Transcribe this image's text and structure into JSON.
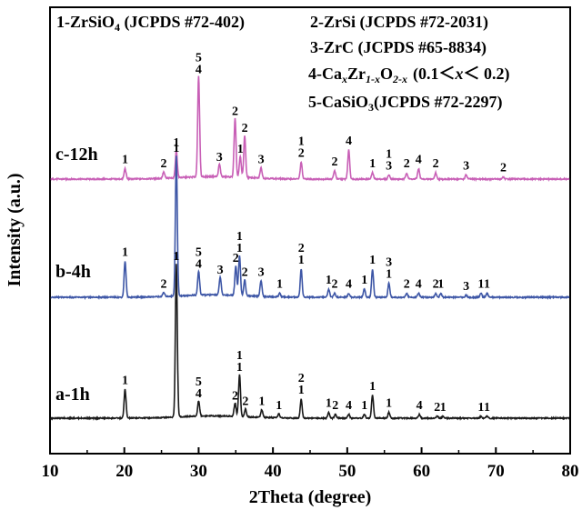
{
  "chart_data": {
    "type": "line",
    "xlabel": "2Theta (degree)",
    "ylabel": "Intensity (a.u.)",
    "xlim": [
      10,
      80
    ],
    "x_ticks": [
      "10",
      "20",
      "30",
      "40",
      "50",
      "60",
      "70",
      "80"
    ],
    "legend_placement": "top",
    "legend": {
      "row1": [
        "1-ZrSiO",
        "4",
        " (JCPDS #72-402)",
        "2-ZrSi (JCPDS #72-2031)"
      ],
      "row2": "3-ZrC (JCPDS #65-8834)",
      "row3": [
        "4-Ca",
        "x",
        "Zr",
        "1-x",
        "O",
        "2-x",
        "(0.1＜",
        "x",
        "＜ 0.2)"
      ],
      "row4": [
        "5-CaSiO",
        "3",
        "(JCPDS #72-2297)"
      ]
    },
    "series": [
      {
        "name": "c-12h",
        "color": "#c85fb6",
        "baseline": 0.0,
        "peaks": [
          {
            "x": 20.1,
            "h": 0.05,
            "labels": [
              "1"
            ]
          },
          {
            "x": 25.3,
            "h": 0.03,
            "labels": [
              "2"
            ]
          },
          {
            "x": 27.0,
            "h": 0.13,
            "labels": [
              "1"
            ]
          },
          {
            "x": 30.0,
            "h": 0.48,
            "labels": [
              "5",
              "4"
            ]
          },
          {
            "x": 32.8,
            "h": 0.06,
            "labels": [
              "3"
            ]
          },
          {
            "x": 34.9,
            "h": 0.28,
            "labels": [
              "2"
            ]
          },
          {
            "x": 35.6,
            "h": 0.1,
            "labels": [
              "1"
            ]
          },
          {
            "x": 36.2,
            "h": 0.2,
            "labels": [
              "2"
            ]
          },
          {
            "x": 38.4,
            "h": 0.05,
            "labels": [
              "3"
            ]
          },
          {
            "x": 43.8,
            "h": 0.08,
            "labels": [
              "1",
              "2"
            ]
          },
          {
            "x": 48.3,
            "h": 0.04,
            "labels": [
              "2"
            ]
          },
          {
            "x": 50.2,
            "h": 0.14,
            "labels": [
              "4"
            ]
          },
          {
            "x": 53.4,
            "h": 0.03,
            "labels": [
              "1"
            ]
          },
          {
            "x": 55.6,
            "h": 0.02,
            "labels": [
              "1",
              "3"
            ]
          },
          {
            "x": 58.0,
            "h": 0.03,
            "labels": [
              "2"
            ]
          },
          {
            "x": 59.6,
            "h": 0.05,
            "labels": [
              "4"
            ]
          },
          {
            "x": 61.9,
            "h": 0.03,
            "labels": [
              "2"
            ]
          },
          {
            "x": 66.0,
            "h": 0.02,
            "labels": [
              "3"
            ]
          },
          {
            "x": 71.0,
            "h": 0.01,
            "labels": [
              "2"
            ]
          }
        ]
      },
      {
        "name": "b-4h",
        "color": "#3d56a6",
        "baseline": 0.0,
        "peaks": [
          {
            "x": 20.1,
            "h": 0.18,
            "labels": [
              "1"
            ]
          },
          {
            "x": 25.3,
            "h": 0.02,
            "labels": [
              "2"
            ]
          },
          {
            "x": 27.0,
            "h": 0.7,
            "labels": [
              "1"
            ]
          },
          {
            "x": 30.0,
            "h": 0.12,
            "labels": [
              "5",
              "4"
            ]
          },
          {
            "x": 32.9,
            "h": 0.09,
            "labels": [
              "3"
            ]
          },
          {
            "x": 35.0,
            "h": 0.15,
            "labels": [
              "2"
            ]
          },
          {
            "x": 35.5,
            "h": 0.2,
            "labels": [
              "1",
              "1"
            ]
          },
          {
            "x": 36.2,
            "h": 0.08,
            "labels": [
              "2"
            ]
          },
          {
            "x": 38.4,
            "h": 0.08,
            "labels": [
              "3"
            ]
          },
          {
            "x": 40.9,
            "h": 0.02,
            "labels": [
              "1"
            ]
          },
          {
            "x": 43.8,
            "h": 0.14,
            "labels": [
              "2",
              "1"
            ]
          },
          {
            "x": 47.5,
            "h": 0.04,
            "labels": [
              "1"
            ]
          },
          {
            "x": 48.3,
            "h": 0.02,
            "labels": [
              "2"
            ]
          },
          {
            "x": 50.2,
            "h": 0.02,
            "labels": [
              "4"
            ]
          },
          {
            "x": 52.3,
            "h": 0.04,
            "labels": [
              "1"
            ]
          },
          {
            "x": 53.4,
            "h": 0.14,
            "labels": [
              "1"
            ]
          },
          {
            "x": 55.6,
            "h": 0.07,
            "labels": [
              "3",
              "1"
            ]
          },
          {
            "x": 58.0,
            "h": 0.02,
            "labels": [
              "2"
            ]
          },
          {
            "x": 59.6,
            "h": 0.02,
            "labels": [
              "4"
            ]
          },
          {
            "x": 61.9,
            "h": 0.02,
            "labels": [
              "2"
            ]
          },
          {
            "x": 62.6,
            "h": 0.02,
            "labels": [
              "1"
            ]
          },
          {
            "x": 66.0,
            "h": 0.01,
            "labels": [
              "3"
            ]
          },
          {
            "x": 68.0,
            "h": 0.02,
            "labels": [
              "1"
            ]
          },
          {
            "x": 68.8,
            "h": 0.02,
            "labels": [
              "1"
            ]
          }
        ]
      },
      {
        "name": "a-1h",
        "color": "#1a1a1a",
        "baseline": 0.0,
        "peaks": [
          {
            "x": 20.1,
            "h": 0.15,
            "labels": [
              "1"
            ]
          },
          {
            "x": 27.0,
            "h": 0.8,
            "labels": [
              "1"
            ]
          },
          {
            "x": 30.0,
            "h": 0.08,
            "labels": [
              "5",
              "4"
            ]
          },
          {
            "x": 34.9,
            "h": 0.07,
            "labels": [
              "2"
            ]
          },
          {
            "x": 35.5,
            "h": 0.22,
            "labels": [
              "1",
              "1"
            ]
          },
          {
            "x": 36.3,
            "h": 0.04,
            "labels": [
              "2"
            ]
          },
          {
            "x": 38.5,
            "h": 0.04,
            "labels": [
              "1"
            ]
          },
          {
            "x": 40.8,
            "h": 0.02,
            "labels": [
              "1"
            ]
          },
          {
            "x": 43.8,
            "h": 0.1,
            "labels": [
              "2",
              "1"
            ]
          },
          {
            "x": 47.5,
            "h": 0.03,
            "labels": [
              "1"
            ]
          },
          {
            "x": 48.4,
            "h": 0.02,
            "labels": [
              "2"
            ]
          },
          {
            "x": 50.2,
            "h": 0.02,
            "labels": [
              "4"
            ]
          },
          {
            "x": 52.3,
            "h": 0.02,
            "labels": [
              "1"
            ]
          },
          {
            "x": 53.4,
            "h": 0.12,
            "labels": [
              "1"
            ]
          },
          {
            "x": 55.6,
            "h": 0.03,
            "labels": [
              "1"
            ]
          },
          {
            "x": 59.7,
            "h": 0.02,
            "labels": [
              "4"
            ]
          },
          {
            "x": 62.1,
            "h": 0.01,
            "labels": [
              "2"
            ]
          },
          {
            "x": 62.9,
            "h": 0.01,
            "labels": [
              "1"
            ]
          },
          {
            "x": 68.0,
            "h": 0.01,
            "labels": [
              "1"
            ]
          },
          {
            "x": 68.8,
            "h": 0.01,
            "labels": [
              "1"
            ]
          }
        ]
      }
    ]
  }
}
